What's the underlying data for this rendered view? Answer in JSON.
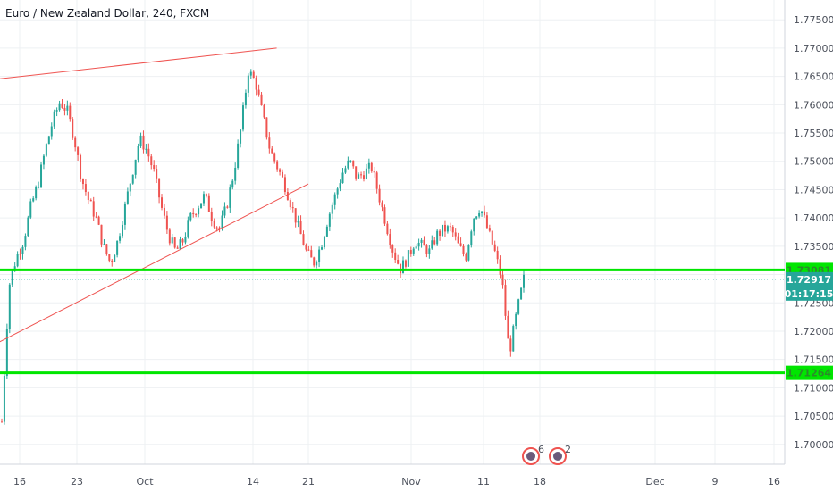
{
  "chart_data": {
    "type": "candlestick",
    "title": "Euro / New Zealand Dollar, 240, FXCM",
    "ylim": [
      1.6965,
      1.7785
    ],
    "y_ticks": [
      "1.77500",
      "1.77000",
      "1.76500",
      "1.76000",
      "1.75500",
      "1.75000",
      "1.74500",
      "1.74000",
      "1.73500",
      "1.73000",
      "1.72500",
      "1.72000",
      "1.71500",
      "1.71000",
      "1.70500",
      "1.70000"
    ],
    "x_ticks": [
      "16",
      "23",
      "Oct",
      "14",
      "21",
      "Nov",
      "11",
      "18",
      "Dec",
      "9",
      "16"
    ],
    "candle_path": [
      1.704,
      1.728,
      1.733,
      1.736,
      1.742,
      1.746,
      1.752,
      1.757,
      1.7605,
      1.759,
      1.754,
      1.747,
      1.743,
      1.74,
      1.735,
      1.732,
      1.736,
      1.742,
      1.748,
      1.754,
      1.752,
      1.748,
      1.742,
      1.737,
      1.734,
      1.736,
      1.74,
      1.742,
      1.744,
      1.74,
      1.738,
      1.742,
      1.748,
      1.756,
      1.766,
      1.764,
      1.758,
      1.752,
      1.749,
      1.746,
      1.742,
      1.738,
      1.734,
      1.732,
      1.735,
      1.74,
      1.744,
      1.748,
      1.75,
      1.747,
      1.748,
      1.749,
      1.744,
      1.739,
      1.734,
      1.731,
      1.733,
      1.736,
      1.735,
      1.734,
      1.737,
      1.738,
      1.738,
      1.735,
      1.733,
      1.74,
      1.742,
      1.738,
      1.734,
      1.729,
      1.716,
      1.723,
      1.7292
    ],
    "horizontal_levels": [
      {
        "value": 1.73081,
        "label": "1.73081",
        "color": "#00e600"
      },
      {
        "value": 1.71264,
        "label": "1.71264",
        "color": "#00e600"
      }
    ],
    "current_price": {
      "value": 1.72917,
      "label": "1.72917",
      "color": "#26a69a"
    },
    "countdown": "01:17:15",
    "trend_lines": [
      {
        "from": {
          "x": "2019-09-10",
          "y": 1.764
        },
        "to": {
          "x": "2019-10-17",
          "y": 1.77
        },
        "color": "#ef5350"
      },
      {
        "from": {
          "x": "2019-09-10",
          "y": 1.7155
        },
        "to": {
          "x": "2019-10-21",
          "y": 1.746
        },
        "color": "#ef5350"
      }
    ],
    "events": [
      {
        "label": "6"
      },
      {
        "label": "2"
      }
    ],
    "colors": {
      "up": "#26a69a",
      "down": "#ef5350"
    }
  }
}
